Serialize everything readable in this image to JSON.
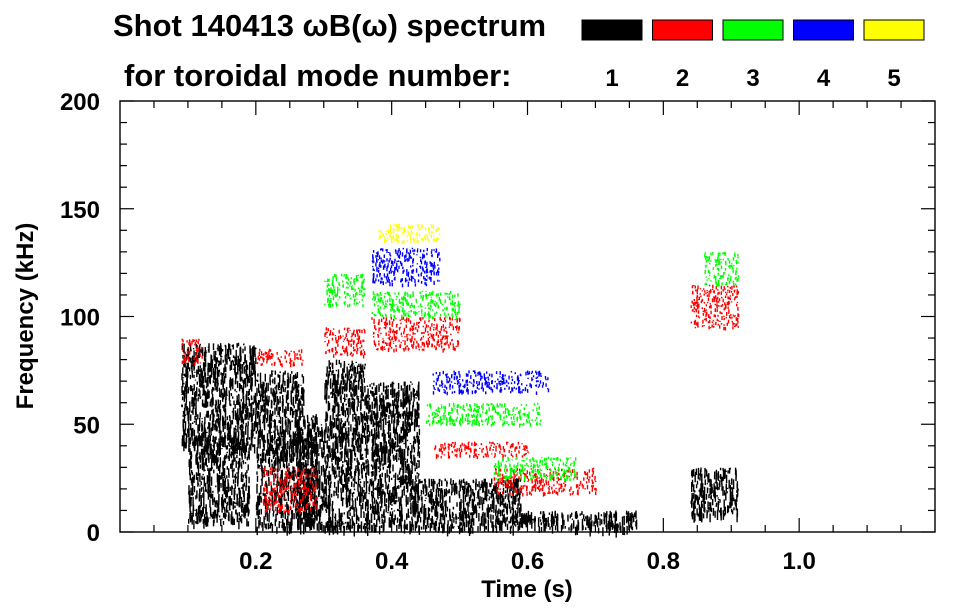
{
  "chart_data": {
    "type": "scatter",
    "title_line1": "Shot 140413 ωB(ω) spectrum",
    "title_line2": "for toroidal mode number:",
    "xlabel": "Time (s)",
    "ylabel": "Frequency (kHz)",
    "xlim": [
      0.0,
      1.2
    ],
    "ylim": [
      0,
      200
    ],
    "x_ticks": [
      0.2,
      0.4,
      0.6,
      0.8,
      1.0
    ],
    "x_tick_labels": [
      "0.2",
      "0.4",
      "0.6",
      "0.8",
      "1.0"
    ],
    "y_ticks": [
      0,
      50,
      100,
      150,
      200
    ],
    "y_tick_labels": [
      "0",
      "50",
      "100",
      "150",
      "200"
    ],
    "grid": false,
    "legend_position": "top-right",
    "series": [
      {
        "name": "1",
        "color": "#000000",
        "blocks": [
          [
            0.09,
            0.2,
            40,
            88
          ],
          [
            0.1,
            0.19,
            5,
            45
          ],
          [
            0.2,
            0.27,
            55,
            75
          ],
          [
            0.2,
            0.29,
            2,
            55
          ],
          [
            0.26,
            0.3,
            3,
            50
          ],
          [
            0.3,
            0.36,
            2,
            80
          ],
          [
            0.36,
            0.44,
            2,
            70
          ],
          [
            0.43,
            0.59,
            10,
            25
          ],
          [
            0.44,
            0.6,
            2,
            10
          ],
          [
            0.58,
            0.76,
            2,
            10
          ],
          [
            0.84,
            0.91,
            8,
            30
          ]
        ]
      },
      {
        "name": "2",
        "color": "#ff0000",
        "blocks": [
          [
            0.09,
            0.12,
            78,
            90
          ],
          [
            0.2,
            0.27,
            78,
            85
          ],
          [
            0.21,
            0.29,
            10,
            30
          ],
          [
            0.3,
            0.36,
            82,
            95
          ],
          [
            0.37,
            0.5,
            85,
            100
          ],
          [
            0.46,
            0.6,
            35,
            42
          ],
          [
            0.55,
            0.7,
            18,
            30
          ],
          [
            0.84,
            0.91,
            95,
            115
          ]
        ]
      },
      {
        "name": "3",
        "color": "#00ff00",
        "blocks": [
          [
            0.3,
            0.36,
            105,
            120
          ],
          [
            0.37,
            0.5,
            100,
            112
          ],
          [
            0.45,
            0.62,
            50,
            60
          ],
          [
            0.55,
            0.67,
            25,
            35
          ],
          [
            0.86,
            0.91,
            115,
            130
          ]
        ]
      },
      {
        "name": "4",
        "color": "#0000ff",
        "blocks": [
          [
            0.37,
            0.47,
            115,
            132
          ],
          [
            0.46,
            0.63,
            65,
            75
          ]
        ]
      },
      {
        "name": "5",
        "color": "#ffff00",
        "blocks": [
          [
            0.38,
            0.47,
            135,
            143
          ]
        ]
      }
    ]
  }
}
